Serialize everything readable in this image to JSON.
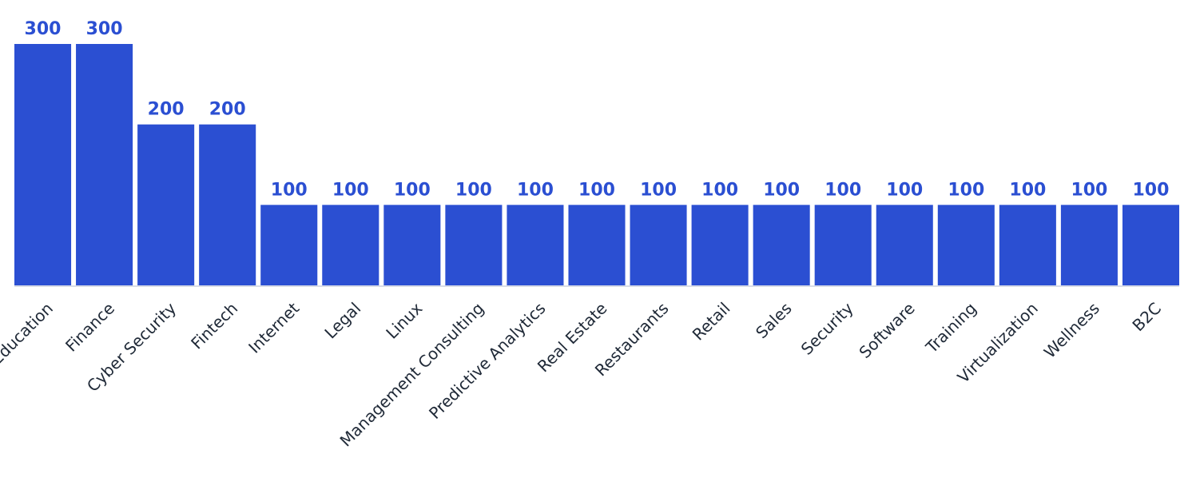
{
  "chart_data": {
    "type": "bar",
    "title": "",
    "xlabel": "",
    "ylabel": "",
    "ylim": [
      0,
      300
    ],
    "grid": false,
    "legend": "none",
    "bar_color": "#2b4fd2",
    "label_color": "#2b4fd2",
    "baseline_color": "#d9dde6",
    "categories": [
      "Education",
      "Finance",
      "Cyber Security",
      "Fintech",
      "Internet",
      "Legal",
      "Linux",
      "Management Consulting",
      "Predictive Analytics",
      "Real Estate",
      "Restaurants",
      "Retail",
      "Sales",
      "Security",
      "Software",
      "Training",
      "Virtualization",
      "Wellness",
      "B2C"
    ],
    "values": [
      300,
      300,
      200,
      200,
      100,
      100,
      100,
      100,
      100,
      100,
      100,
      100,
      100,
      100,
      100,
      100,
      100,
      100,
      100
    ],
    "value_labels": [
      "300",
      "300",
      "200",
      "200",
      "100",
      "100",
      "100",
      "100",
      "100",
      "100",
      "100",
      "100",
      "100",
      "100",
      "100",
      "100",
      "100",
      "100",
      "100"
    ]
  }
}
